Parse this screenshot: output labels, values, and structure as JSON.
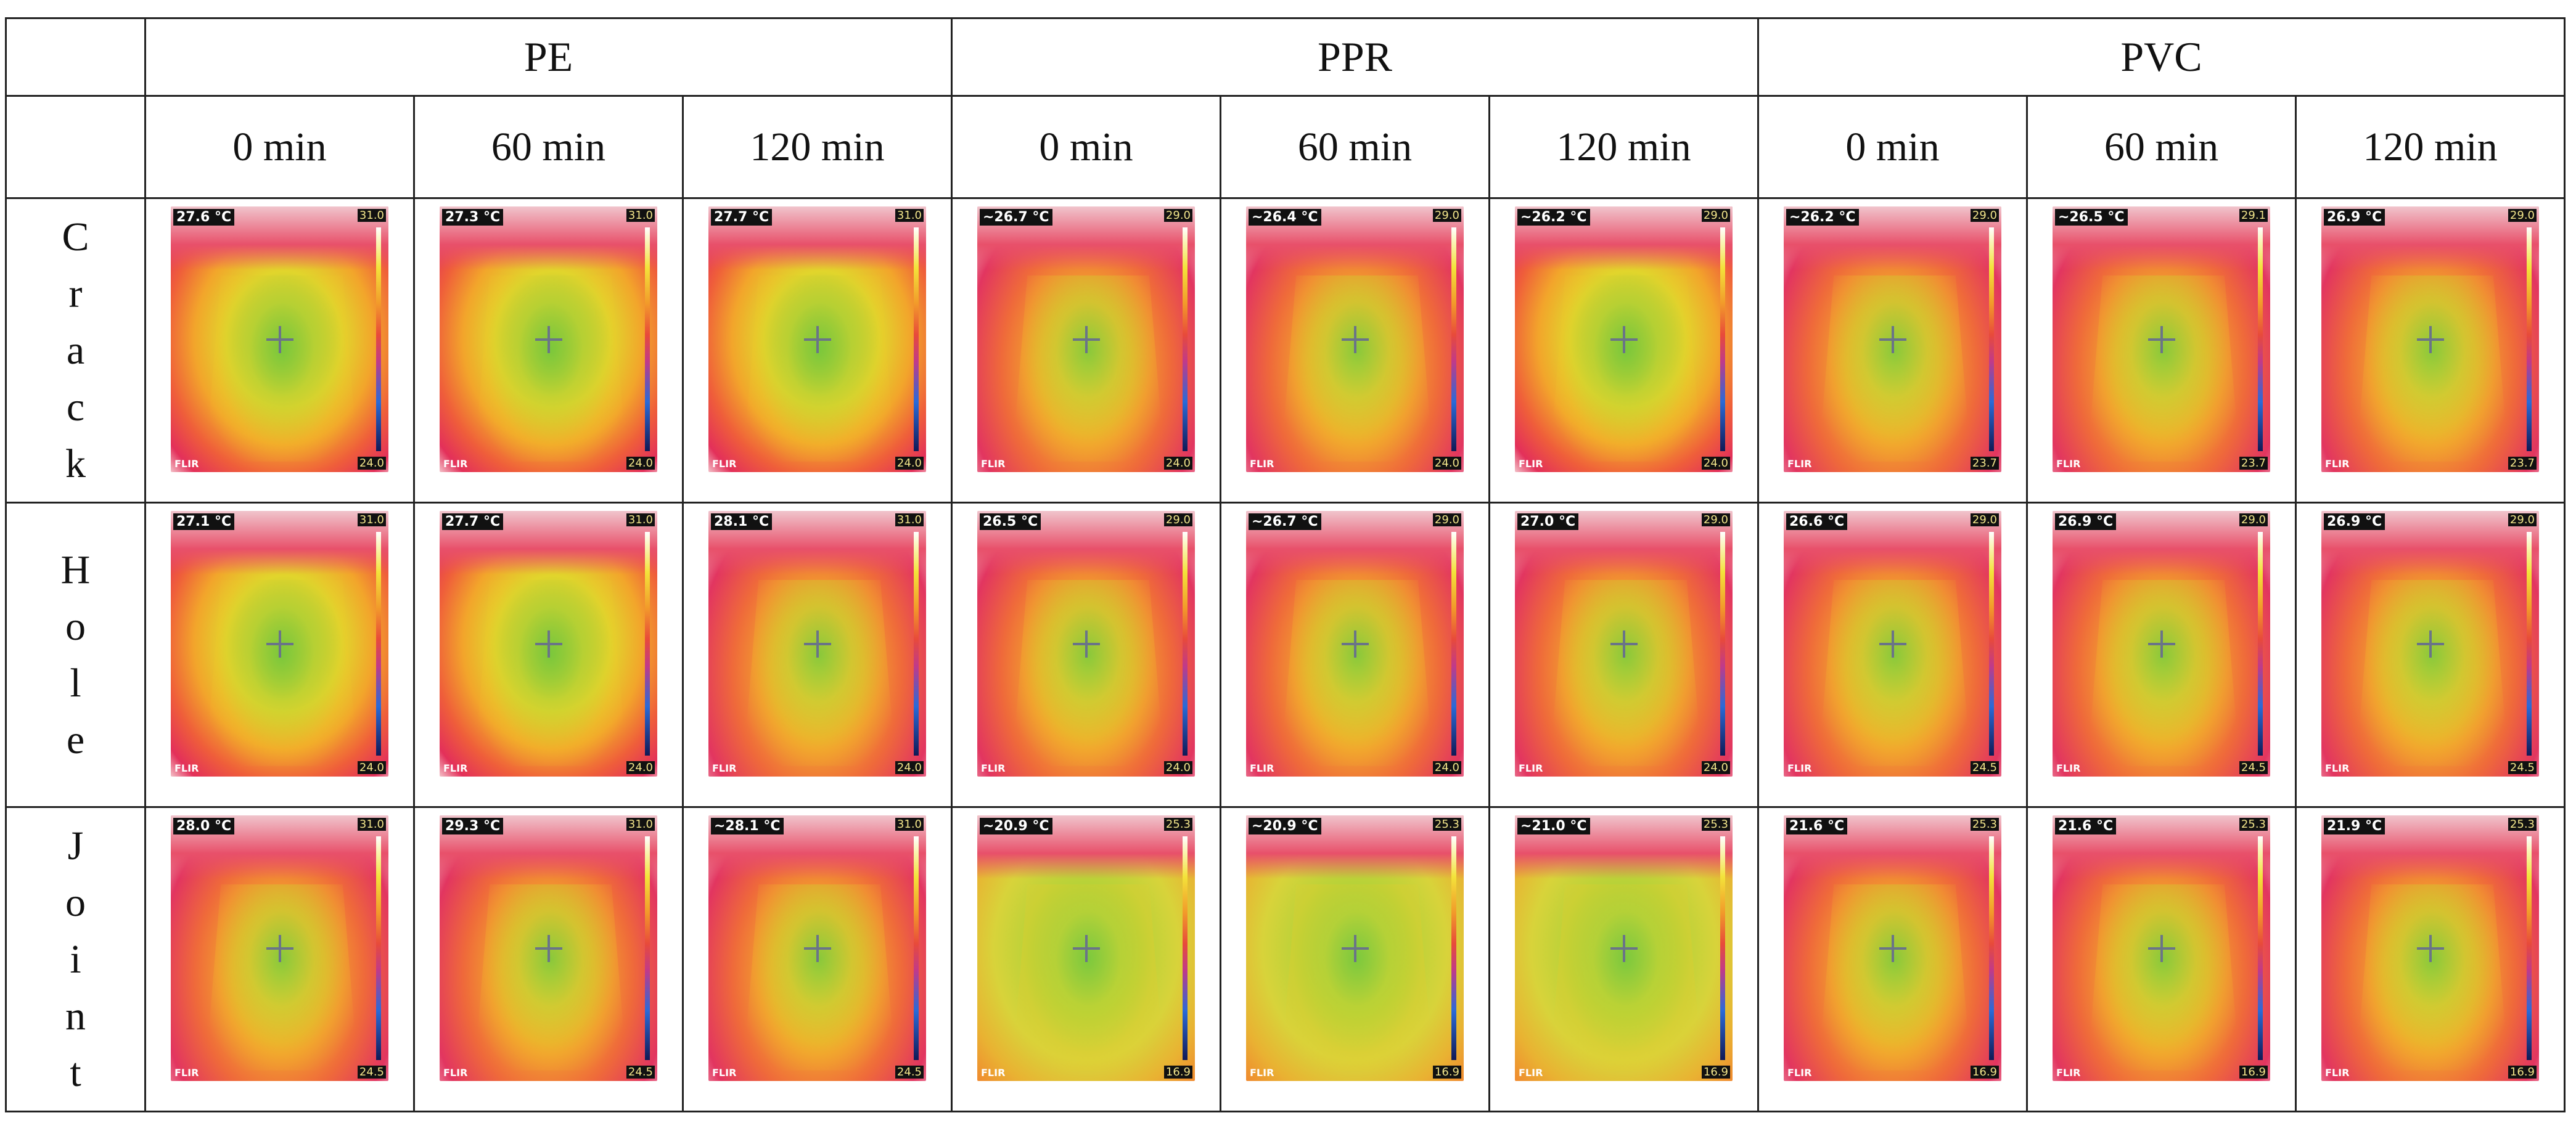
{
  "groups": [
    "PE",
    "PPR",
    "PVC"
  ],
  "times": [
    "0 min",
    "60 min",
    "120 min",
    "0 min",
    "60 min",
    "120 min",
    "0 min",
    "60 min",
    "120 min"
  ],
  "rows": [
    {
      "label_chars": [
        "C",
        "r",
        "a",
        "c",
        "k"
      ],
      "cells": [
        {
          "temp": "27.6 °C",
          "max": "31.0",
          "min": "24.0",
          "style": "normal"
        },
        {
          "temp": "27.3 °C",
          "max": "31.0",
          "min": "24.0",
          "style": "normal"
        },
        {
          "temp": "27.7 °C",
          "max": "31.0",
          "min": "24.0",
          "style": "normal"
        },
        {
          "temp": "~26.7 °C",
          "max": "29.0",
          "min": "24.0",
          "style": "hot"
        },
        {
          "temp": "~26.4 °C",
          "max": "29.0",
          "min": "24.0",
          "style": "hot"
        },
        {
          "temp": "~26.2 °C",
          "max": "29.0",
          "min": "24.0",
          "style": "normal"
        },
        {
          "temp": "~26.2 °C",
          "max": "29.0",
          "min": "23.7",
          "style": "hot"
        },
        {
          "temp": "~26.5 °C",
          "max": "29.1",
          "min": "23.7",
          "style": "hot"
        },
        {
          "temp": "26.9 °C",
          "max": "29.0",
          "min": "23.7",
          "style": "hot"
        }
      ]
    },
    {
      "label_chars": [
        "H",
        "o",
        "l",
        "e"
      ],
      "cells": [
        {
          "temp": "27.1 °C",
          "max": "31.0",
          "min": "24.0",
          "style": "normal"
        },
        {
          "temp": "27.7 °C",
          "max": "31.0",
          "min": "24.0",
          "style": "normal"
        },
        {
          "temp": "28.1 °C",
          "max": "31.0",
          "min": "24.0",
          "style": "hot"
        },
        {
          "temp": "26.5 °C",
          "max": "29.0",
          "min": "24.0",
          "style": "hot"
        },
        {
          "temp": "~26.7 °C",
          "max": "29.0",
          "min": "24.0",
          "style": "hot"
        },
        {
          "temp": "27.0 °C",
          "max": "29.0",
          "min": "24.0",
          "style": "hot"
        },
        {
          "temp": "26.6 °C",
          "max": "29.0",
          "min": "24.5",
          "style": "hot"
        },
        {
          "temp": "26.9 °C",
          "max": "29.0",
          "min": "24.5",
          "style": "hot"
        },
        {
          "temp": "26.9 °C",
          "max": "29.0",
          "min": "24.5",
          "style": "hot"
        }
      ]
    },
    {
      "label_chars": [
        "J",
        "o",
        "i",
        "n",
        "t"
      ],
      "cells": [
        {
          "temp": "28.0 °C",
          "max": "31.0",
          "min": "24.5",
          "style": "hot"
        },
        {
          "temp": "29.3 °C",
          "max": "31.0",
          "min": "24.5",
          "style": "hot"
        },
        {
          "temp": "~28.1 °C",
          "max": "31.0",
          "min": "24.5",
          "style": "hot"
        },
        {
          "temp": "~20.9 °C",
          "max": "25.3",
          "min": "16.9",
          "style": "cool"
        },
        {
          "temp": "~20.9 °C",
          "max": "25.3",
          "min": "16.9",
          "style": "cool"
        },
        {
          "temp": "~21.0 °C",
          "max": "25.3",
          "min": "16.9",
          "style": "cool"
        },
        {
          "temp": "21.6 °C",
          "max": "25.3",
          "min": "16.9",
          "style": "hot"
        },
        {
          "temp": "21.6 °C",
          "max": "25.3",
          "min": "16.9",
          "style": "hot"
        },
        {
          "temp": "21.9 °C",
          "max": "25.3",
          "min": "16.9",
          "style": "hot"
        }
      ]
    }
  ],
  "brand": "FLIR",
  "icons": {
    "crosshair": "crosshair-icon"
  }
}
